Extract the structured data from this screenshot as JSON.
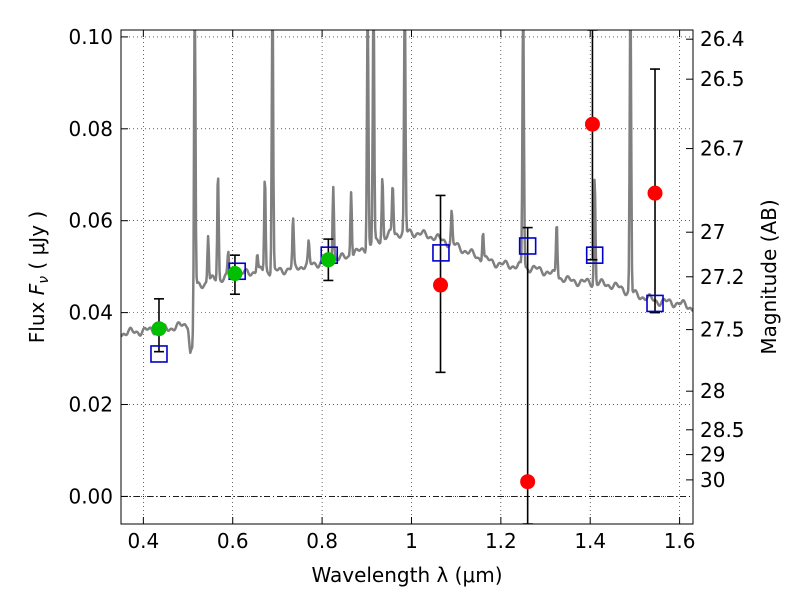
{
  "chart_data": {
    "type": "scatter",
    "xlabel": "Wavelength  λ (μm)",
    "ylabel_prefix": "Flux  ",
    "ylabel_symbol": "F",
    "ylabel_subscript": "ν",
    "ylabel_suffix": "  ( μJy )",
    "ylabel_right": "Magnitude (AB)",
    "xlim": [
      0.35,
      1.63
    ],
    "ylim": [
      -0.006,
      0.1015
    ],
    "xticks": [
      {
        "value": 0.4,
        "label": "0.4"
      },
      {
        "value": 0.6,
        "label": "0.6"
      },
      {
        "value": 0.8,
        "label": "0.8"
      },
      {
        "value": 1.0,
        "label": "1"
      },
      {
        "value": 1.2,
        "label": "1.2"
      },
      {
        "value": 1.4,
        "label": "1.4"
      },
      {
        "value": 1.6,
        "label": "1.6"
      }
    ],
    "yticks": [
      {
        "value": 0.0,
        "label": "0.00"
      },
      {
        "value": 0.02,
        "label": "0.02"
      },
      {
        "value": 0.04,
        "label": "0.04"
      },
      {
        "value": 0.06,
        "label": "0.06"
      },
      {
        "value": 0.08,
        "label": "0.08"
      },
      {
        "value": 0.1,
        "label": "0.10"
      }
    ],
    "right_ticks": [
      {
        "flux": 0.0995,
        "label": "26.4"
      },
      {
        "flux": 0.0908,
        "label": "26.5"
      },
      {
        "flux": 0.0757,
        "label": "26.7"
      },
      {
        "flux": 0.0575,
        "label": "27"
      },
      {
        "flux": 0.0478,
        "label": "27.2"
      },
      {
        "flux": 0.0363,
        "label": "27.5"
      },
      {
        "flux": 0.0229,
        "label": "28"
      },
      {
        "flux": 0.0145,
        "label": "28.5"
      },
      {
        "flux": 0.0091,
        "label": "29"
      },
      {
        "flux": 0.0036,
        "label": "30"
      }
    ],
    "grid": true,
    "hline": 0.0,
    "colors": {
      "spectrum": "#808080",
      "detected": "#00bf00",
      "nondetected": "#ff0000",
      "model": "#0000cc",
      "errorbar": "#000000"
    },
    "observed": [
      {
        "x": 0.435,
        "y": 0.0365,
        "ylow": 0.0315,
        "yhigh": 0.043,
        "status": "detected"
      },
      {
        "x": 0.605,
        "y": 0.0485,
        "ylow": 0.044,
        "yhigh": 0.0525,
        "status": "detected"
      },
      {
        "x": 0.814,
        "y": 0.0515,
        "ylow": 0.047,
        "yhigh": 0.056,
        "status": "detected"
      },
      {
        "x": 1.065,
        "y": 0.046,
        "ylow": 0.027,
        "yhigh": 0.0655,
        "status": "nondetected"
      },
      {
        "x": 1.26,
        "y": 0.0032,
        "ylow": -0.006,
        "yhigh": 0.0585,
        "status": "nondetected"
      },
      {
        "x": 1.405,
        "y": 0.081,
        "ylow": 0.0515,
        "yhigh": 0.1015,
        "status": "nondetected"
      },
      {
        "x": 1.545,
        "y": 0.066,
        "ylow": 0.04,
        "yhigh": 0.093,
        "status": "nondetected"
      }
    ],
    "model_points": [
      {
        "x": 0.435,
        "y": 0.031
      },
      {
        "x": 0.61,
        "y": 0.049
      },
      {
        "x": 0.816,
        "y": 0.0525
      },
      {
        "x": 1.066,
        "y": 0.053
      },
      {
        "x": 1.26,
        "y": 0.0545
      },
      {
        "x": 1.41,
        "y": 0.0525
      },
      {
        "x": 1.545,
        "y": 0.042
      }
    ],
    "spectrum": {
      "continuum": [
        [
          0.35,
          0.0355
        ],
        [
          0.4,
          0.036
        ],
        [
          0.45,
          0.0365
        ],
        [
          0.48,
          0.037
        ],
        [
          0.5,
          0.0375
        ],
        [
          0.505,
          0.0315
        ],
        [
          0.51,
          0.032
        ],
        [
          0.515,
          0.0455
        ],
        [
          0.55,
          0.047
        ],
        [
          0.6,
          0.048
        ],
        [
          0.65,
          0.049
        ],
        [
          0.7,
          0.049
        ],
        [
          0.75,
          0.05
        ],
        [
          0.8,
          0.051
        ],
        [
          0.85,
          0.052
        ],
        [
          0.9,
          0.054
        ],
        [
          0.95,
          0.057
        ],
        [
          1.0,
          0.0575
        ],
        [
          1.05,
          0.0565
        ],
        [
          1.1,
          0.0545
        ],
        [
          1.15,
          0.052
        ],
        [
          1.2,
          0.0505
        ],
        [
          1.25,
          0.05
        ],
        [
          1.3,
          0.049
        ],
        [
          1.35,
          0.047
        ],
        [
          1.4,
          0.0465
        ],
        [
          1.45,
          0.046
        ],
        [
          1.5,
          0.044
        ],
        [
          1.55,
          0.0425
        ],
        [
          1.6,
          0.042
        ],
        [
          1.63,
          0.041
        ]
      ],
      "lines": [
        {
          "x": 0.515,
          "peak": 0.11
        },
        {
          "x": 0.545,
          "peak": 0.057
        },
        {
          "x": 0.567,
          "peak": 0.071
        },
        {
          "x": 0.59,
          "peak": 0.053
        },
        {
          "x": 0.655,
          "peak": 0.053
        },
        {
          "x": 0.672,
          "peak": 0.07
        },
        {
          "x": 0.689,
          "peak": 0.11
        },
        {
          "x": 0.735,
          "peak": 0.06
        },
        {
          "x": 0.77,
          "peak": 0.055
        },
        {
          "x": 0.825,
          "peak": 0.068
        },
        {
          "x": 0.865,
          "peak": 0.067
        },
        {
          "x": 0.902,
          "peak": 0.11
        },
        {
          "x": 0.915,
          "peak": 0.11
        },
        {
          "x": 0.935,
          "peak": 0.07
        },
        {
          "x": 0.958,
          "peak": 0.068
        },
        {
          "x": 0.985,
          "peak": 0.11
        },
        {
          "x": 1.09,
          "peak": 0.062
        },
        {
          "x": 1.16,
          "peak": 0.058
        },
        {
          "x": 1.25,
          "peak": 0.11
        },
        {
          "x": 1.325,
          "peak": 0.06
        },
        {
          "x": 1.41,
          "peak": 0.07
        },
        {
          "x": 1.49,
          "peak": 0.11
        }
      ]
    }
  }
}
